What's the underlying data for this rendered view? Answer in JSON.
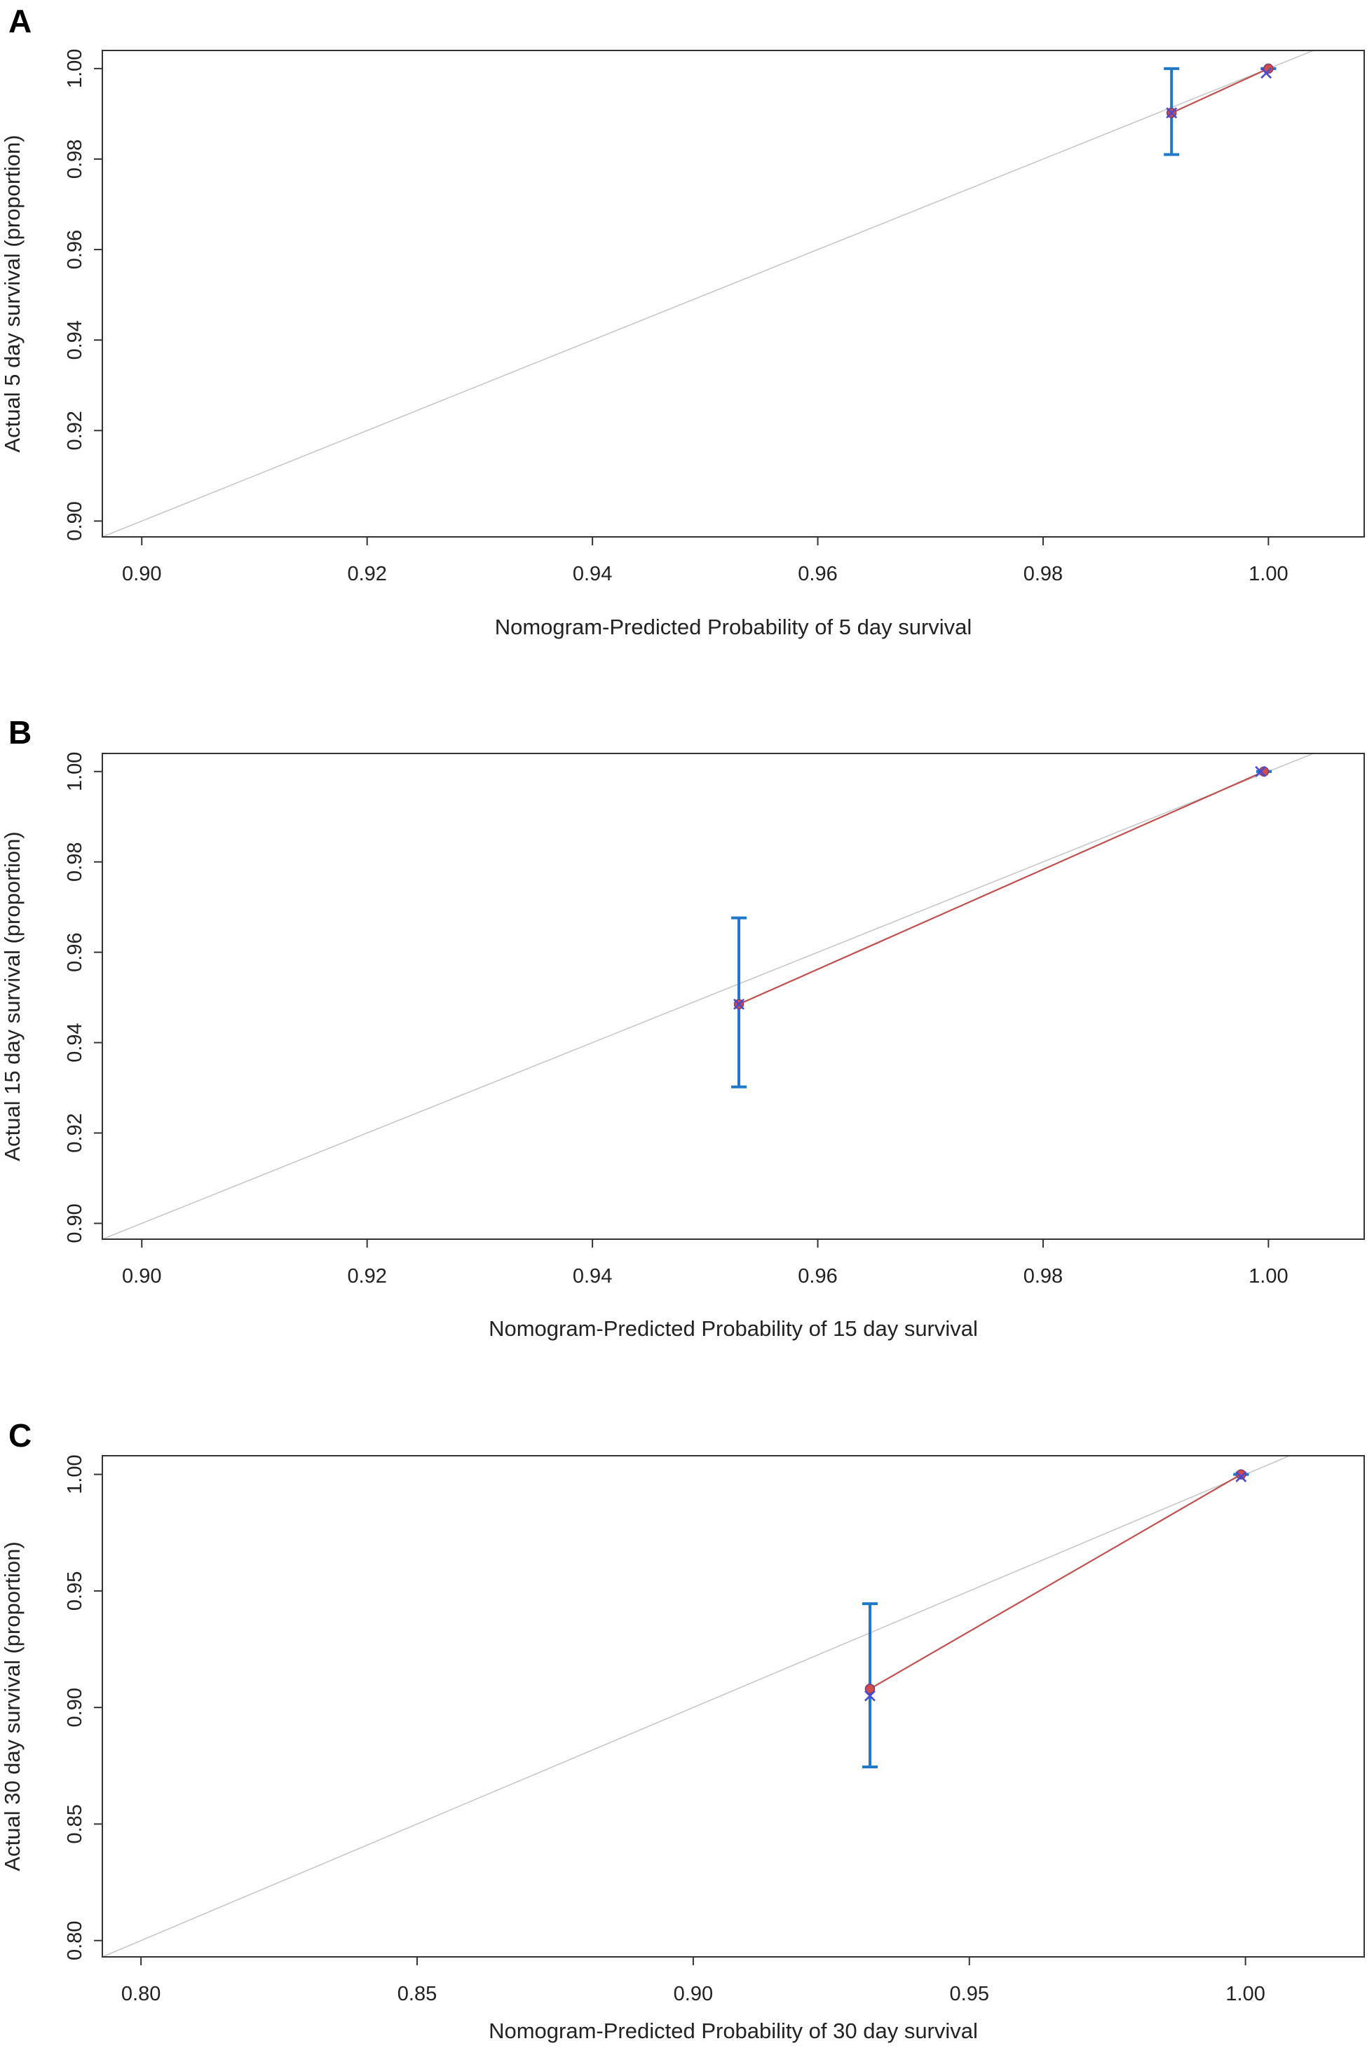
{
  "chart_data": [
    {
      "type": "scatter",
      "panel": "A",
      "xlabel": "Nomogram-Predicted Probability of 5 day survival",
      "ylabel": "Actual 5 day survival (proportion)",
      "xlim": [
        0.8965,
        1.0085
      ],
      "ylim": [
        0.8965,
        1.004
      ],
      "xticks": [
        "0.90",
        "0.92",
        "0.94",
        "0.96",
        "0.98",
        "1.00"
      ],
      "xtick_values": [
        0.9,
        0.92,
        0.94,
        0.96,
        0.98,
        1.0
      ],
      "yticks": [
        "0.90",
        "0.92",
        "0.94",
        "0.96",
        "0.98",
        "1.00"
      ],
      "ytick_values": [
        0.9,
        0.92,
        0.94,
        0.96,
        0.98,
        1.0
      ],
      "ideal_line": true,
      "points": [
        {
          "x": 0.9914,
          "y": 0.9902,
          "lower": 0.981,
          "upper": 1.0,
          "x_kaplan": 0.9914,
          "y_kaplan": 0.9902
        },
        {
          "x": 1.0,
          "y": 1.0,
          "lower": 1.0,
          "upper": 1.0,
          "x_kaplan": 0.9998,
          "y_kaplan": 0.999
        }
      ]
    },
    {
      "type": "scatter",
      "panel": "B",
      "xlabel": "Nomogram-Predicted Probability of 15 day survival",
      "ylabel": "Actual 15 day survival (proportion)",
      "xlim": [
        0.8965,
        1.0085
      ],
      "ylim": [
        0.8965,
        1.004
      ],
      "xticks": [
        "0.90",
        "0.92",
        "0.94",
        "0.96",
        "0.98",
        "1.00"
      ],
      "xtick_values": [
        0.9,
        0.92,
        0.94,
        0.96,
        0.98,
        1.0
      ],
      "yticks": [
        "0.90",
        "0.92",
        "0.94",
        "0.96",
        "0.98",
        "1.00"
      ],
      "ytick_values": [
        0.9,
        0.92,
        0.94,
        0.96,
        0.98,
        1.0
      ],
      "ideal_line": true,
      "points": [
        {
          "x": 0.953,
          "y": 0.9485,
          "lower": 0.9302,
          "upper": 0.9676,
          "x_kaplan": 0.953,
          "y_kaplan": 0.9485
        },
        {
          "x": 0.9996,
          "y": 1.0,
          "lower": 1.0,
          "upper": 1.0,
          "x_kaplan": 0.9993,
          "y_kaplan": 1.0
        }
      ]
    },
    {
      "type": "scatter",
      "panel": "C",
      "xlabel": "Nomogram-Predicted Probability of 30 day survival",
      "ylabel": "Actual 30 day survival (proportion)",
      "xlim": [
        0.793,
        1.0215
      ],
      "ylim": [
        0.793,
        1.008
      ],
      "xticks": [
        "0.80",
        "0.85",
        "0.90",
        "0.95",
        "1.00"
      ],
      "xtick_values": [
        0.8,
        0.85,
        0.9,
        0.95,
        1.0
      ],
      "yticks": [
        "0.80",
        "0.85",
        "0.90",
        "0.95",
        "1.00"
      ],
      "ytick_values": [
        0.8,
        0.85,
        0.9,
        0.95,
        1.0
      ],
      "ideal_line": true,
      "points": [
        {
          "x": 0.932,
          "y": 0.908,
          "lower": 0.8745,
          "upper": 0.9445,
          "x_kaplan": 0.932,
          "y_kaplan": 0.905
        },
        {
          "x": 0.9992,
          "y": 1.0,
          "lower": 1.0,
          "upper": 1.0,
          "x_kaplan": 0.9992,
          "y_kaplan": 0.999
        }
      ]
    }
  ]
}
